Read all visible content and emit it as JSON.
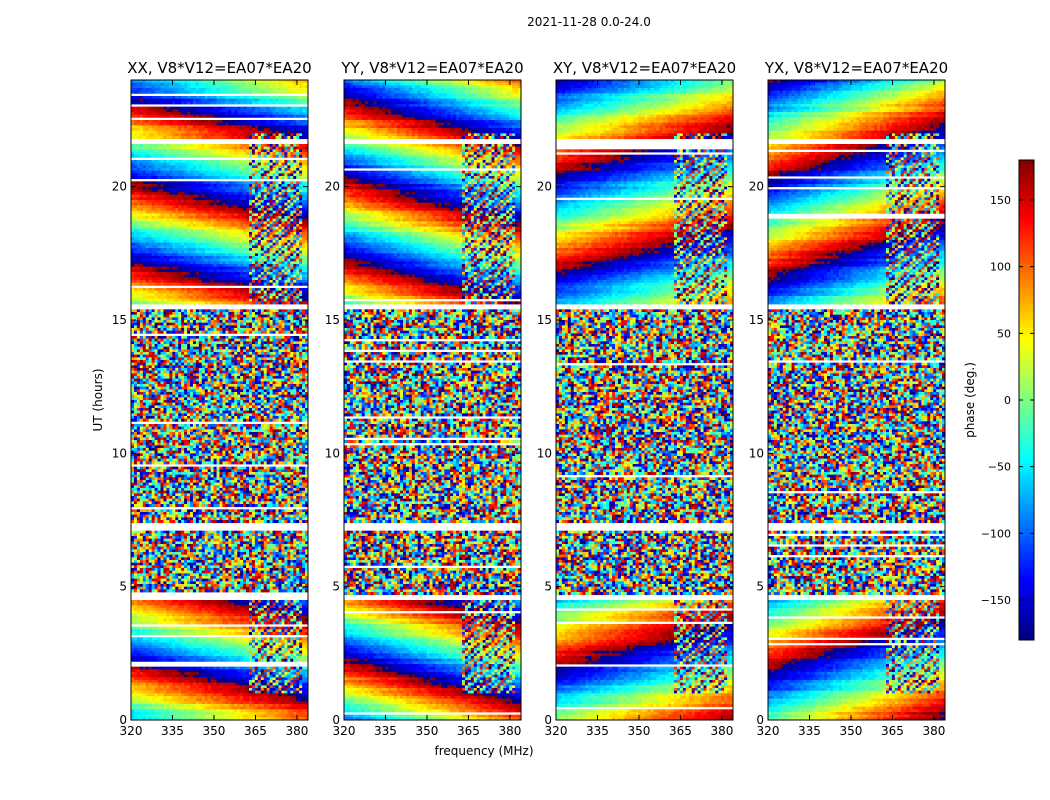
{
  "figure": {
    "suptitle": "2021-11-28 0.0-24.0"
  },
  "chart_data": {
    "type": "heatmap",
    "xlabel": "frequency (MHz)",
    "ylabel": "UT (hours)",
    "xlim": [
      320,
      384
    ],
    "ylim": [
      0,
      24
    ],
    "x_ticks": [
      320,
      335,
      350,
      365,
      380
    ],
    "y_ticks": [
      0,
      5,
      10,
      15,
      20
    ],
    "panels": [
      {
        "title": "XX, V8*V12=EA07*EA20",
        "pol": "XX"
      },
      {
        "title": "YY, V8*V12=EA07*EA20",
        "pol": "YY"
      },
      {
        "title": "XY, V8*V12=EA07*EA20",
        "pol": "XY"
      },
      {
        "title": "YX, V8*V12=EA07*EA20",
        "pol": "YX"
      }
    ],
    "colorbar": {
      "label": "phase (deg.)",
      "range": [
        -180,
        180
      ],
      "ticks": [
        150,
        100,
        50,
        0,
        -50,
        -100,
        -150
      ],
      "colormap": "jet"
    },
    "flagged_ut_bands": [
      [
        4.5,
        4.7
      ],
      [
        7.1,
        7.4
      ],
      [
        15.4,
        15.6
      ],
      [
        21.6,
        21.8
      ]
    ],
    "rfi_freq_range_mhz": [
      363,
      382
    ],
    "coherent_ut_ranges": [
      [
        0,
        4.5
      ],
      [
        15.6,
        24
      ]
    ],
    "noisy_ut_ranges": [
      [
        4.7,
        15.4
      ]
    ]
  }
}
